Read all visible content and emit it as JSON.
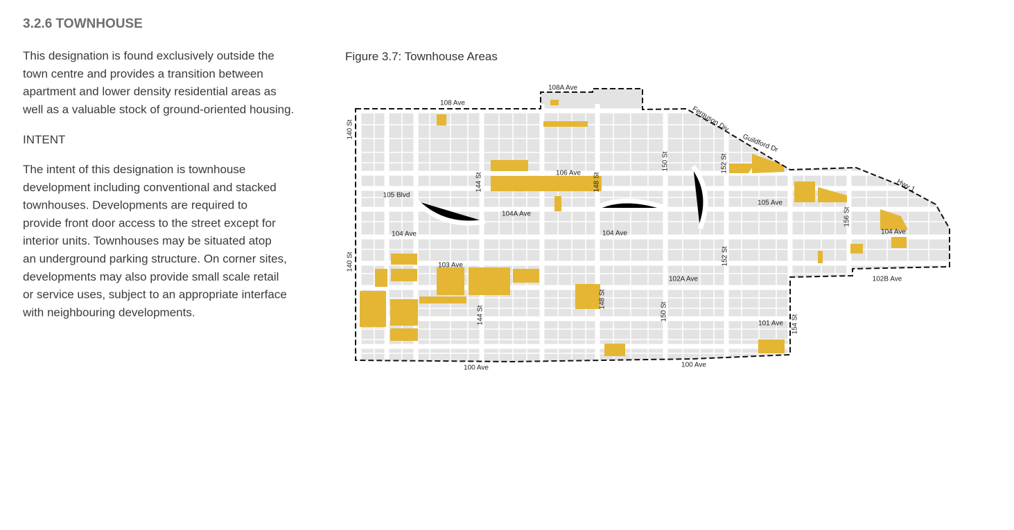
{
  "section": {
    "title": "3.2.6 TOWNHOUSE",
    "intro_lines": [
      "This designation is found exclusively outside the",
      "town centre and provides a transition between",
      "apartment and lower density residential areas as",
      "well as a valuable stock of ground-oriented housing."
    ],
    "intent_heading": "INTENT",
    "intent_lines": [
      "The intent of this designation is townhouse",
      "development including conventional and stacked",
      "townhouses. Developments are required to",
      "provide front door access to the street except for",
      "interior units. Townhouses may be situated atop",
      "an underground parking structure. On corner sites,",
      "developments may also provide small scale retail",
      "or service uses, subject to an appropriate interface",
      "with neighbouring developments."
    ]
  },
  "figure": {
    "title": "Figure 3.7: Townhouse Areas",
    "street_labels": [
      "108A Ave",
      "108 Ave",
      "140 St",
      "105 Blvd",
      "144 St",
      "106 Ave",
      "148 St",
      "150 St",
      "152 St",
      "Ferguson Div",
      "Guildford Dr",
      "Hwy 1",
      "105 Ave",
      "104A Ave",
      "104 Ave",
      "104 Ave",
      "156 St",
      "104 Ave",
      "140 St",
      "103 Ave",
      "152 St",
      "102A Ave",
      "102B Ave",
      "148 St",
      "144 St",
      "150 St",
      "101 Ave",
      "154 St",
      "100 Ave",
      "100 Ave"
    ]
  }
}
